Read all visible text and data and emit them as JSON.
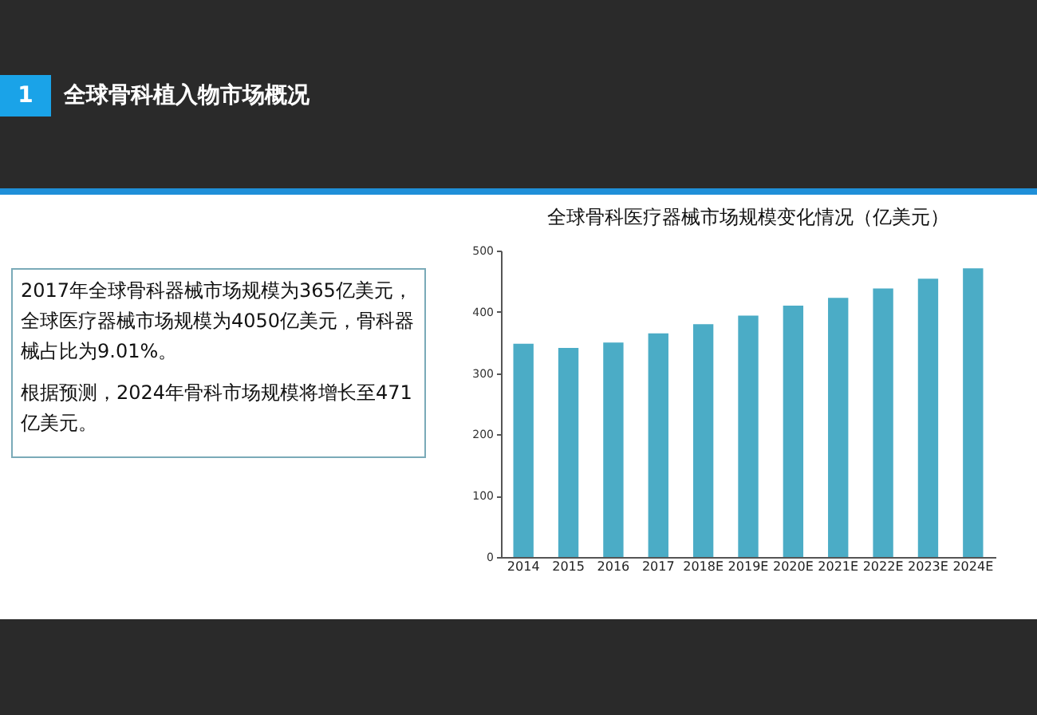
{
  "chart_data": {
    "type": "bar",
    "title": "全球骨科医疗器械市场规模变化情况（亿美元）",
    "categories": [
      "2014",
      "2015",
      "2016",
      "2017",
      "2018E",
      "2019E",
      "2020E",
      "2021E",
      "2022E",
      "2023E",
      "2024E"
    ],
    "values": [
      348,
      341,
      350,
      365,
      380,
      394,
      410,
      423,
      438,
      454,
      471
    ],
    "color": "#4bacc6",
    "ylim": [
      0,
      500
    ],
    "yticks": [
      0,
      100,
      200,
      300,
      400,
      500
    ],
    "grid": false,
    "annotations": [
      "1",
      "全球骨科植入物市场概况",
      "2017年全球骨科器械市场规模为365亿美元，全球医疗器械市场规模为4050亿美元，骨科器械占比为9.01%。",
      "根据预测，2024年骨科市场规模将增长至471亿美元。"
    ]
  }
}
